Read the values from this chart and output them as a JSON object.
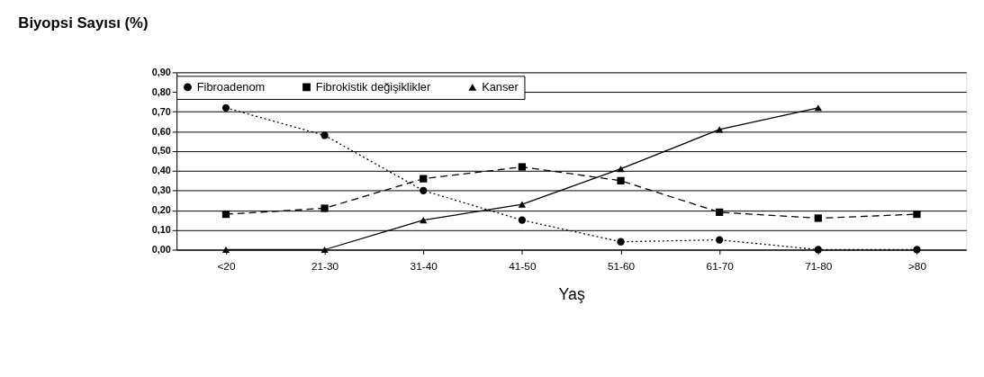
{
  "chart_data": {
    "type": "line",
    "title": "Biyopsi Sayısı (%)",
    "xlabel": "Yaş",
    "categories": [
      "<20",
      "21-30",
      "31-40",
      "41-50",
      "51-60",
      "61-70",
      "71-80",
      ">80"
    ],
    "series": [
      {
        "name": "Fibroadenom",
        "color": "#000000",
        "marker": "circle",
        "line_style": "dotted",
        "values": [
          0.72,
          0.58,
          0.3,
          0.15,
          0.04,
          0.05,
          0.0,
          0.0
        ]
      },
      {
        "name": "Fibrokistik değişiklikler",
        "color": "#000000",
        "marker": "square",
        "line_style": "dashed",
        "values": [
          0.18,
          0.21,
          0.36,
          0.42,
          0.35,
          0.19,
          0.16,
          0.18
        ]
      },
      {
        "name": "Kanser",
        "color": "#000000",
        "marker": "triangle",
        "line_style": "solid",
        "values": [
          0.0,
          0.0,
          0.15,
          0.23,
          0.41,
          0.61,
          0.72,
          null
        ]
      }
    ],
    "ylim": [
      0,
      0.9
    ],
    "yticks": [
      {
        "value": 0,
        "label": "0,00"
      },
      {
        "value": 0.1,
        "label": "0,10"
      },
      {
        "value": 0.2,
        "label": "0,20"
      },
      {
        "value": 0.3,
        "label": "0,30"
      },
      {
        "value": 0.4,
        "label": "0,40"
      },
      {
        "value": 0.5,
        "label": "0,50"
      },
      {
        "value": 0.6,
        "label": "0,60"
      },
      {
        "value": 0.7,
        "label": "0,70"
      },
      {
        "value": 0.8,
        "label": "0,80"
      },
      {
        "value": 0.9,
        "label": "0,90"
      }
    ],
    "grid": "y",
    "legend": "top"
  }
}
